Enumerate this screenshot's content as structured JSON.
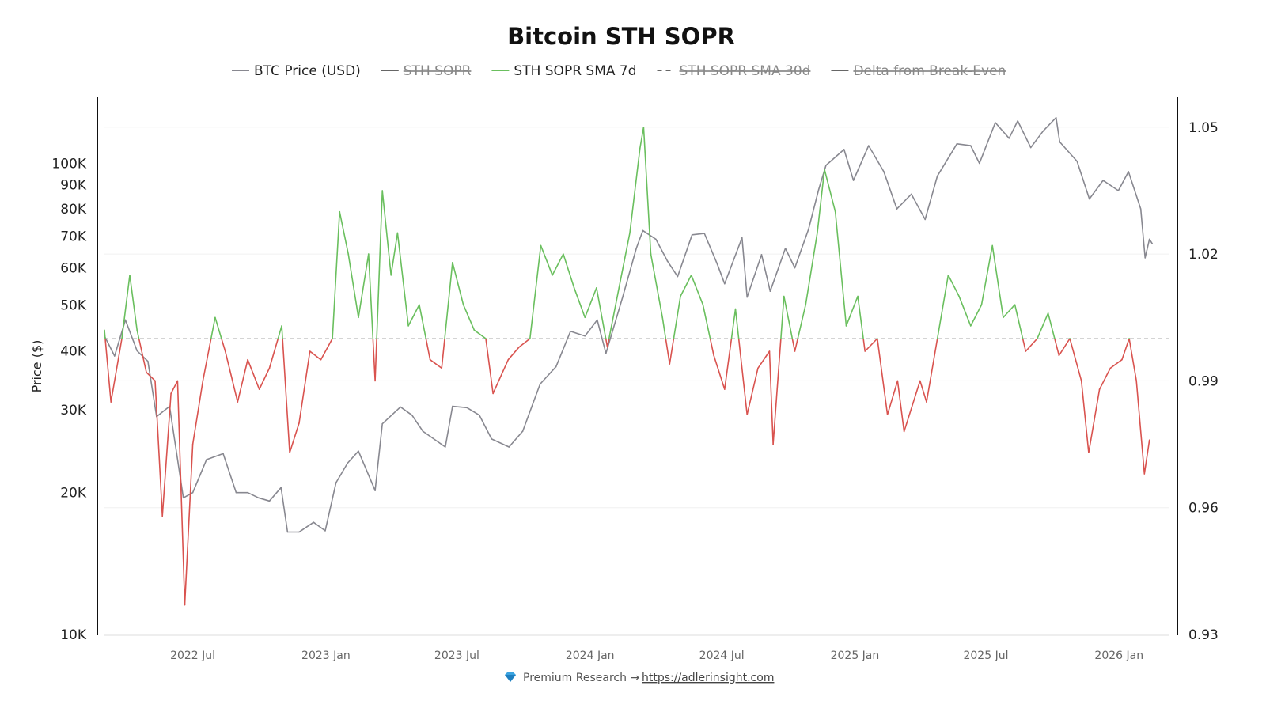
{
  "chart_data": {
    "type": "line",
    "title": "Bitcoin STH SOPR",
    "legend": {
      "placement": "top",
      "items": [
        {
          "name": "BTC Price (USD)",
          "color": "#888890",
          "style": "solid",
          "hidden": false
        },
        {
          "name": "STH SOPR",
          "color": "#666666",
          "style": "solid",
          "hidden": true
        },
        {
          "name": "STH SOPR SMA 7d",
          "color": "#6abf5e",
          "style": "solid",
          "hidden": false
        },
        {
          "name": "STH SOPR SMA 30d",
          "color": "#666666",
          "style": "dashed",
          "hidden": true
        },
        {
          "name": "Delta from Break-Even",
          "color": "#666666",
          "style": "solid",
          "hidden": true
        }
      ]
    },
    "y_left": {
      "label": "Price ($)",
      "scale": "log",
      "range": [
        10000,
        137000
      ],
      "ticks": [
        "10K",
        "20K",
        "30K",
        "40K",
        "50K",
        "60K",
        "70K",
        "80K",
        "90K",
        "100K"
      ],
      "tick_values": [
        10000,
        20000,
        30000,
        40000,
        50000,
        60000,
        70000,
        80000,
        90000,
        100000
      ]
    },
    "y_right": {
      "label": "",
      "scale": "linear",
      "range": [
        0.93,
        1.0567
      ],
      "ticks": [
        "0.93",
        "0.96",
        "0.99",
        "1.02",
        "1.05"
      ],
      "tick_values": [
        0.93,
        0.96,
        0.99,
        1.02,
        1.05
      ]
    },
    "x_axis": {
      "type": "date",
      "range": [
        "2022-03-01",
        "2026-02-20"
      ],
      "ticks": [
        "2022 Jul",
        "2023 Jan",
        "2023 Jul",
        "2024 Jan",
        "2024 Jul",
        "2025 Jan",
        "2025 Jul",
        "2026 Jan"
      ],
      "tick_values": [
        "2022-07-01",
        "2023-01-01",
        "2023-07-01",
        "2024-01-01",
        "2024-07-01",
        "2025-01-01",
        "2025-07-01",
        "2026-01-01"
      ]
    },
    "break_even": 1.0,
    "colors": {
      "above": "#6abf5e",
      "below": "#d9534f",
      "price": "#888890",
      "break_even_line": "#bbbbbb"
    },
    "grid": {
      "horizontal": true,
      "vertical": false
    },
    "series": [
      {
        "name": "BTC Price (USD)",
        "axis": "left",
        "points": [
          [
            "2022-03-01",
            43000
          ],
          [
            "2022-03-15",
            39000
          ],
          [
            "2022-03-30",
            46500
          ],
          [
            "2022-04-15",
            40000
          ],
          [
            "2022-04-30",
            38000
          ],
          [
            "2022-05-12",
            29000
          ],
          [
            "2022-05-30",
            30500
          ],
          [
            "2022-06-18",
            19500
          ],
          [
            "2022-07-01",
            20000
          ],
          [
            "2022-07-20",
            23500
          ],
          [
            "2022-08-12",
            24200
          ],
          [
            "2022-08-30",
            20000
          ],
          [
            "2022-09-15",
            20000
          ],
          [
            "2022-09-30",
            19500
          ],
          [
            "2022-10-15",
            19200
          ],
          [
            "2022-10-31",
            20500
          ],
          [
            "2022-11-09",
            16500
          ],
          [
            "2022-11-25",
            16500
          ],
          [
            "2022-12-15",
            17300
          ],
          [
            "2022-12-31",
            16600
          ],
          [
            "2023-01-15",
            21000
          ],
          [
            "2023-01-31",
            23100
          ],
          [
            "2023-02-15",
            24500
          ],
          [
            "2023-03-10",
            20200
          ],
          [
            "2023-03-20",
            28000
          ],
          [
            "2023-04-14",
            30400
          ],
          [
            "2023-04-30",
            29200
          ],
          [
            "2023-05-15",
            27000
          ],
          [
            "2023-06-15",
            25000
          ],
          [
            "2023-06-25",
            30500
          ],
          [
            "2023-07-15",
            30300
          ],
          [
            "2023-08-01",
            29200
          ],
          [
            "2023-08-18",
            26000
          ],
          [
            "2023-09-11",
            25000
          ],
          [
            "2023-09-30",
            27000
          ],
          [
            "2023-10-24",
            34000
          ],
          [
            "2023-11-15",
            37000
          ],
          [
            "2023-12-05",
            44000
          ],
          [
            "2023-12-25",
            43000
          ],
          [
            "2024-01-11",
            46500
          ],
          [
            "2024-01-23",
            39500
          ],
          [
            "2024-02-15",
            52000
          ],
          [
            "2024-03-05",
            66000
          ],
          [
            "2024-03-14",
            72000
          ],
          [
            "2024-04-01",
            69000
          ],
          [
            "2024-04-17",
            62000
          ],
          [
            "2024-05-01",
            57500
          ],
          [
            "2024-05-21",
            70500
          ],
          [
            "2024-06-07",
            71000
          ],
          [
            "2024-06-25",
            61000
          ],
          [
            "2024-07-05",
            55500
          ],
          [
            "2024-07-29",
            69500
          ],
          [
            "2024-08-05",
            52000
          ],
          [
            "2024-08-25",
            64000
          ],
          [
            "2024-09-06",
            53500
          ],
          [
            "2024-09-27",
            66000
          ],
          [
            "2024-10-10",
            60000
          ],
          [
            "2024-10-29",
            72500
          ],
          [
            "2024-11-12",
            88000
          ],
          [
            "2024-11-22",
            99000
          ],
          [
            "2024-12-17",
            107000
          ],
          [
            "2024-12-30",
            92000
          ],
          [
            "2025-01-20",
            109000
          ],
          [
            "2025-02-10",
            96000
          ],
          [
            "2025-02-28",
            80000
          ],
          [
            "2025-03-20",
            86000
          ],
          [
            "2025-04-08",
            76000
          ],
          [
            "2025-04-25",
            94000
          ],
          [
            "2025-05-22",
            110000
          ],
          [
            "2025-06-10",
            109000
          ],
          [
            "2025-06-22",
            100000
          ],
          [
            "2025-07-14",
            122000
          ],
          [
            "2025-08-02",
            113000
          ],
          [
            "2025-08-14",
            123000
          ],
          [
            "2025-09-01",
            108000
          ],
          [
            "2025-09-18",
            117000
          ],
          [
            "2025-10-06",
            125000
          ],
          [
            "2025-10-11",
            111000
          ],
          [
            "2025-11-04",
            101000
          ],
          [
            "2025-11-21",
            84000
          ],
          [
            "2025-12-10",
            92000
          ],
          [
            "2025-12-31",
            87500
          ],
          [
            "2026-01-14",
            96000
          ],
          [
            "2026-01-31",
            80000
          ],
          [
            "2026-02-06",
            63000
          ],
          [
            "2026-02-12",
            69000
          ],
          [
            "2026-02-16",
            67500
          ]
        ]
      },
      {
        "name": "STH SOPR SMA 7d",
        "axis": "right",
        "points": [
          [
            "2022-03-01",
            1.002
          ],
          [
            "2022-03-10",
            0.985
          ],
          [
            "2022-03-25",
            1.0
          ],
          [
            "2022-04-05",
            1.015
          ],
          [
            "2022-04-15",
            1.002
          ],
          [
            "2022-04-28",
            0.992
          ],
          [
            "2022-05-10",
            0.99
          ],
          [
            "2022-05-20",
            0.958
          ],
          [
            "2022-06-01",
            0.987
          ],
          [
            "2022-06-10",
            0.99
          ],
          [
            "2022-06-20",
            0.937
          ],
          [
            "2022-07-01",
            0.975
          ],
          [
            "2022-07-15",
            0.99
          ],
          [
            "2022-08-01",
            1.005
          ],
          [
            "2022-08-15",
            0.997
          ],
          [
            "2022-09-01",
            0.985
          ],
          [
            "2022-09-15",
            0.995
          ],
          [
            "2022-10-01",
            0.988
          ],
          [
            "2022-10-15",
            0.993
          ],
          [
            "2022-11-01",
            1.003
          ],
          [
            "2022-11-12",
            0.973
          ],
          [
            "2022-11-25",
            0.98
          ],
          [
            "2022-12-10",
            0.997
          ],
          [
            "2022-12-25",
            0.995
          ],
          [
            "2023-01-10",
            1.0
          ],
          [
            "2023-01-20",
            1.03
          ],
          [
            "2023-02-01",
            1.02
          ],
          [
            "2023-02-15",
            1.005
          ],
          [
            "2023-03-01",
            1.02
          ],
          [
            "2023-03-10",
            0.99
          ],
          [
            "2023-03-20",
            1.035
          ],
          [
            "2023-04-01",
            1.015
          ],
          [
            "2023-04-10",
            1.025
          ],
          [
            "2023-04-25",
            1.003
          ],
          [
            "2023-05-10",
            1.008
          ],
          [
            "2023-05-25",
            0.995
          ],
          [
            "2023-06-10",
            0.993
          ],
          [
            "2023-06-25",
            1.018
          ],
          [
            "2023-07-10",
            1.008
          ],
          [
            "2023-07-25",
            1.002
          ],
          [
            "2023-08-10",
            1.0
          ],
          [
            "2023-08-20",
            0.987
          ],
          [
            "2023-09-10",
            0.995
          ],
          [
            "2023-09-25",
            0.998
          ],
          [
            "2023-10-10",
            1.0
          ],
          [
            "2023-10-25",
            1.022
          ],
          [
            "2023-11-10",
            1.015
          ],
          [
            "2023-11-25",
            1.02
          ],
          [
            "2023-12-10",
            1.012
          ],
          [
            "2023-12-25",
            1.005
          ],
          [
            "2024-01-10",
            1.012
          ],
          [
            "2024-01-25",
            0.998
          ],
          [
            "2024-02-10",
            1.012
          ],
          [
            "2024-02-25",
            1.025
          ],
          [
            "2024-03-10",
            1.045
          ],
          [
            "2024-03-15",
            1.05
          ],
          [
            "2024-03-25",
            1.02
          ],
          [
            "2024-04-10",
            1.005
          ],
          [
            "2024-04-20",
            0.994
          ],
          [
            "2024-05-05",
            1.01
          ],
          [
            "2024-05-20",
            1.015
          ],
          [
            "2024-06-05",
            1.008
          ],
          [
            "2024-06-20",
            0.996
          ],
          [
            "2024-07-05",
            0.988
          ],
          [
            "2024-07-20",
            1.007
          ],
          [
            "2024-08-05",
            0.982
          ],
          [
            "2024-08-20",
            0.993
          ],
          [
            "2024-09-05",
            0.997
          ],
          [
            "2024-09-10",
            0.975
          ],
          [
            "2024-09-25",
            1.01
          ],
          [
            "2024-10-10",
            0.997
          ],
          [
            "2024-10-25",
            1.008
          ],
          [
            "2024-11-10",
            1.025
          ],
          [
            "2024-11-20",
            1.04
          ],
          [
            "2024-12-05",
            1.03
          ],
          [
            "2024-12-20",
            1.003
          ],
          [
            "2025-01-05",
            1.01
          ],
          [
            "2025-01-15",
            0.997
          ],
          [
            "2025-02-01",
            1.0
          ],
          [
            "2025-02-15",
            0.982
          ],
          [
            "2025-03-01",
            0.99
          ],
          [
            "2025-03-10",
            0.978
          ],
          [
            "2025-04-01",
            0.99
          ],
          [
            "2025-04-10",
            0.985
          ],
          [
            "2025-04-25",
            1.0
          ],
          [
            "2025-05-10",
            1.015
          ],
          [
            "2025-05-25",
            1.01
          ],
          [
            "2025-06-10",
            1.003
          ],
          [
            "2025-06-25",
            1.008
          ],
          [
            "2025-07-10",
            1.022
          ],
          [
            "2025-07-25",
            1.005
          ],
          [
            "2025-08-10",
            1.008
          ],
          [
            "2025-08-25",
            0.997
          ],
          [
            "2025-09-10",
            1.0
          ],
          [
            "2025-09-25",
            1.006
          ],
          [
            "2025-10-10",
            0.996
          ],
          [
            "2025-10-25",
            1.0
          ],
          [
            "2025-11-10",
            0.99
          ],
          [
            "2025-11-20",
            0.973
          ],
          [
            "2025-12-05",
            0.988
          ],
          [
            "2025-12-20",
            0.993
          ],
          [
            "2026-01-05",
            0.995
          ],
          [
            "2026-01-15",
            1.0
          ],
          [
            "2026-01-25",
            0.99
          ],
          [
            "2026-02-05",
            0.968
          ],
          [
            "2026-02-12",
            0.976
          ]
        ]
      }
    ]
  },
  "footer": {
    "icon": "gem-icon",
    "text": "Premium Research →",
    "link": "https://adlerinsight.com"
  }
}
